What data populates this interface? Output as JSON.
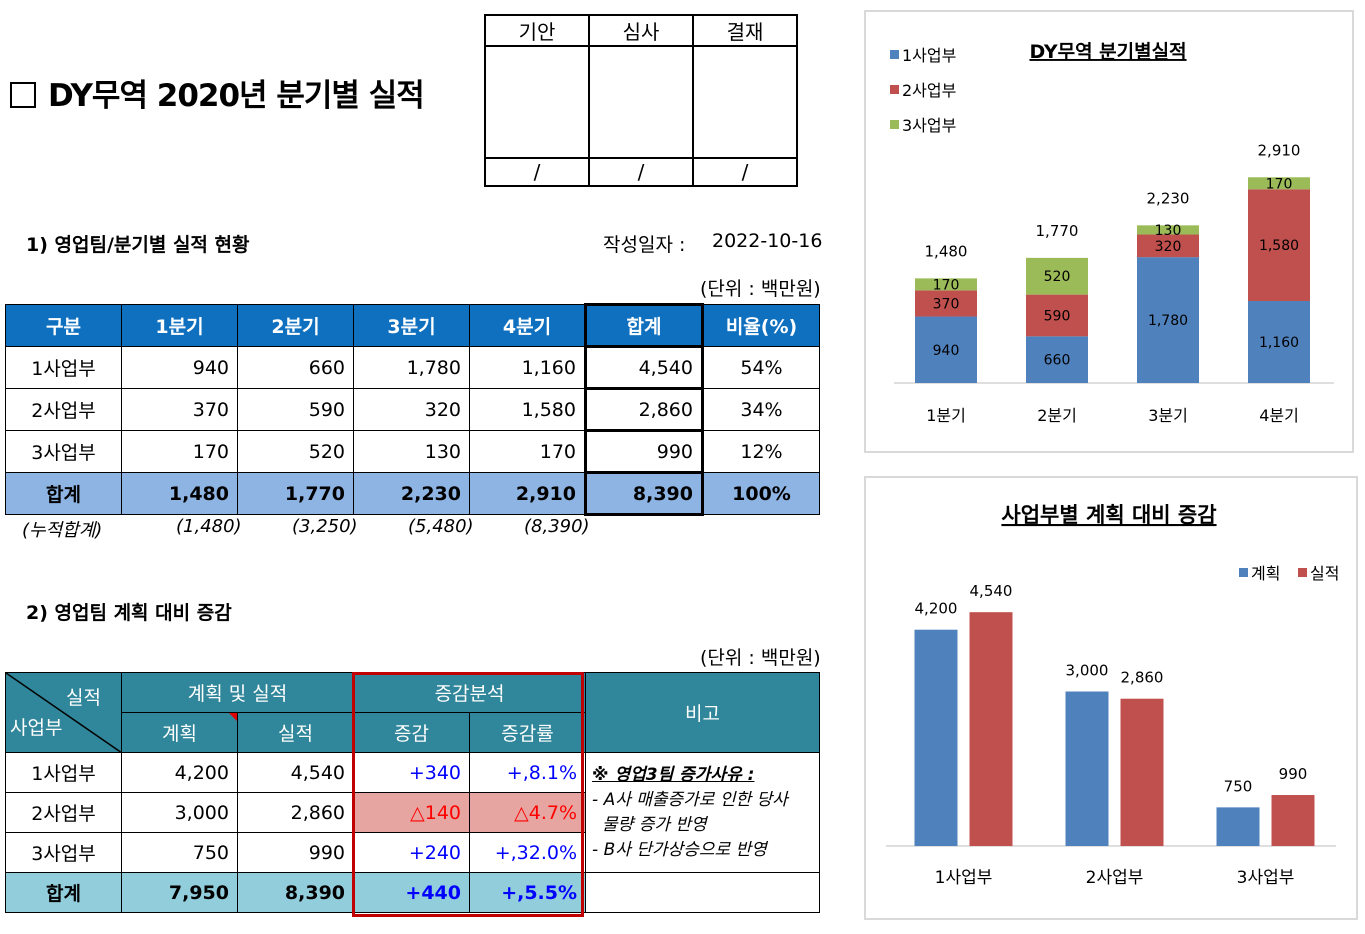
{
  "header": {
    "title": "DY무역 2020년 분기별 실적"
  },
  "approval": {
    "columns": [
      "기안",
      "심사",
      "결재"
    ],
    "slashes": [
      "/",
      "/",
      "/"
    ]
  },
  "section1": {
    "heading": "1) 영업팀/분기별 실적 현황",
    "date_label": "작성일자 :",
    "date_value": "2022-10-16",
    "unit": "(단위 : 백만원)"
  },
  "table1": {
    "headers": [
      "구분",
      "1분기",
      "2분기",
      "3분기",
      "4분기",
      "합계",
      "비율(%)"
    ],
    "rows": [
      [
        "1사업부",
        "940",
        "660",
        "1,780",
        "1,160",
        "4,540",
        "54%"
      ],
      [
        "2사업부",
        "370",
        "590",
        "320",
        "1,580",
        "2,860",
        "34%"
      ],
      [
        "3사업부",
        "170",
        "520",
        "130",
        "170",
        "990",
        "12%"
      ]
    ],
    "total": [
      "합계",
      "1,480",
      "1,770",
      "2,230",
      "2,910",
      "8,390",
      "100%"
    ],
    "cumulative": [
      "(누적합계)",
      "(1,480)",
      "(3,250)",
      "(5,480)",
      "(8,390)"
    ]
  },
  "section2": {
    "heading": "2) 영업팀 계획 대비 증감",
    "unit": "(단위 : 백만원)"
  },
  "table2": {
    "corner_top": "실적",
    "corner_bottom": "사업부",
    "group1": "계획 및 실적",
    "group2": "증감분석",
    "note_header": "비고",
    "subheaders": [
      "계획",
      "실적",
      "증감",
      "증감률"
    ],
    "rows": [
      [
        "1사업부",
        "4,200",
        "4,540",
        "+340",
        "+,8.1%"
      ],
      [
        "2사업부",
        "3,000",
        "2,860",
        "△140",
        "△4.7%"
      ],
      [
        "3사업부",
        "750",
        "990",
        "+240",
        "+,32.0%"
      ]
    ],
    "total": [
      "합계",
      "7,950",
      "8,390",
      "+440",
      "+,5.5%"
    ],
    "note": [
      "※ 영업3팀 증가사유 :",
      "- A사 매출증가로 인한 당사",
      "  물량 증가 반영",
      "- B사 단가상승으로 반영"
    ]
  },
  "chart_data": [
    {
      "type": "bar",
      "stacked": true,
      "title": "DY무역 분기별실적",
      "categories": [
        "1분기",
        "2분기",
        "3분기",
        "4분기"
      ],
      "series": [
        {
          "name": "1사업부",
          "color": "#4f81bd",
          "values": [
            940,
            660,
            1780,
            1160
          ],
          "labels": [
            "940",
            "660",
            "1,780",
            "1,160"
          ]
        },
        {
          "name": "2사업부",
          "color": "#c0504d",
          "values": [
            370,
            590,
            320,
            1580
          ],
          "labels": [
            "370",
            "590",
            "320",
            "1,580"
          ]
        },
        {
          "name": "3사업부",
          "color": "#9bbb59",
          "values": [
            170,
            520,
            130,
            170
          ],
          "labels": [
            "170",
            "520",
            "130",
            "170"
          ]
        }
      ],
      "totals": [
        "1,480",
        "1,770",
        "2,230",
        "2,910"
      ],
      "ylim": [
        0,
        3000
      ],
      "legend": "top-left"
    },
    {
      "type": "bar",
      "title": "사업부별 계획 대비 증감",
      "categories": [
        "1사업부",
        "2사업부",
        "3사업부"
      ],
      "series": [
        {
          "name": "계획",
          "color": "#4f81bd",
          "values": [
            4200,
            3000,
            750
          ],
          "labels": [
            "4,200",
            "3,000",
            "750"
          ]
        },
        {
          "name": "실적",
          "color": "#c0504d",
          "values": [
            4540,
            2860,
            990
          ],
          "labels": [
            "4,540",
            "2,860",
            "990"
          ]
        }
      ],
      "ylim": [
        0,
        5000
      ],
      "legend": "top-right"
    }
  ]
}
